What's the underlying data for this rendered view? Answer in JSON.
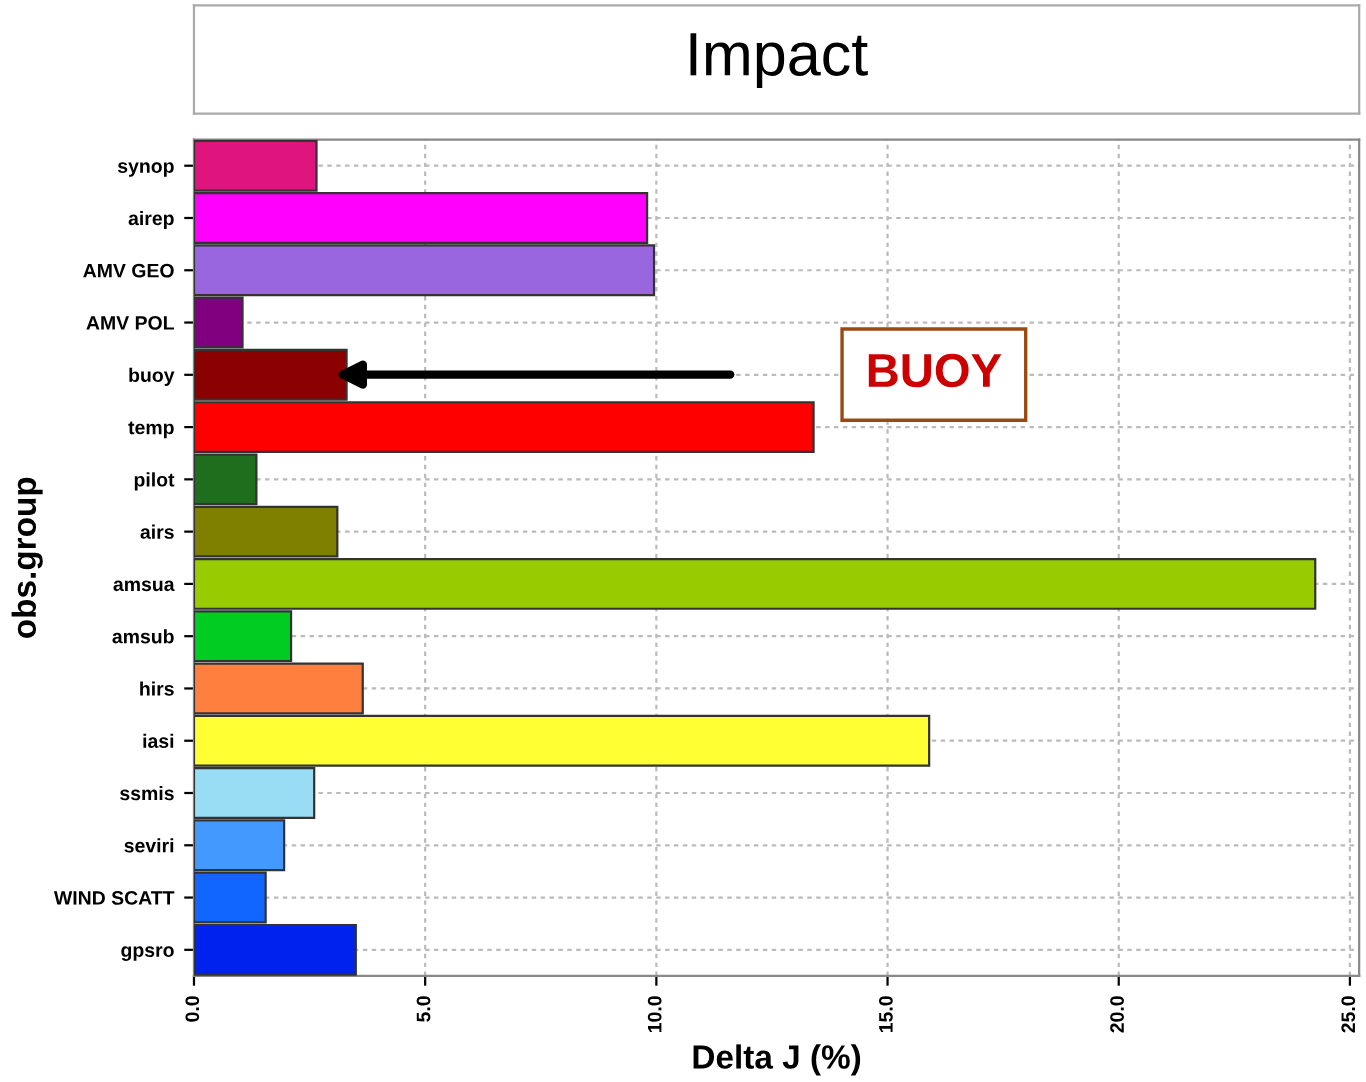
{
  "chart_data": {
    "type": "bar",
    "orientation": "horizontal",
    "title": "Impact",
    "xlabel": "Delta J (%)",
    "ylabel": "obs.group",
    "categories": [
      "synop",
      "airep",
      "AMV GEO",
      "AMV POL",
      "buoy",
      "temp",
      "pilot",
      "airs",
      "amsua",
      "amsub",
      "hirs",
      "iasi",
      "ssmis",
      "seviri",
      "WIND SCATT",
      "gpsro"
    ],
    "values": [
      2.65,
      9.8,
      9.95,
      1.05,
      3.3,
      13.4,
      1.35,
      3.1,
      24.25,
      2.1,
      3.65,
      15.9,
      2.6,
      1.95,
      1.55,
      3.5
    ],
    "colors": [
      "#e0147f",
      "#ff00ff",
      "#9966e0",
      "#800080",
      "#8b0000",
      "#ff0000",
      "#1e6e1e",
      "#808000",
      "#99cc00",
      "#00cc22",
      "#ff7f3f",
      "#ffff33",
      "#99ddf5",
      "#4499ff",
      "#1166ff",
      "#0022ee"
    ],
    "xlim": [
      0,
      25.2
    ],
    "xticks": [
      {
        "value": 0,
        "label": "0.0"
      },
      {
        "value": 5,
        "label": "5.0"
      },
      {
        "value": 10,
        "label": "10.0"
      },
      {
        "value": 15,
        "label": "15.0"
      },
      {
        "value": 20,
        "label": "20.0"
      },
      {
        "value": 25,
        "label": "25.0"
      }
    ],
    "grid": true,
    "annotations": [
      "BUOY"
    ]
  }
}
